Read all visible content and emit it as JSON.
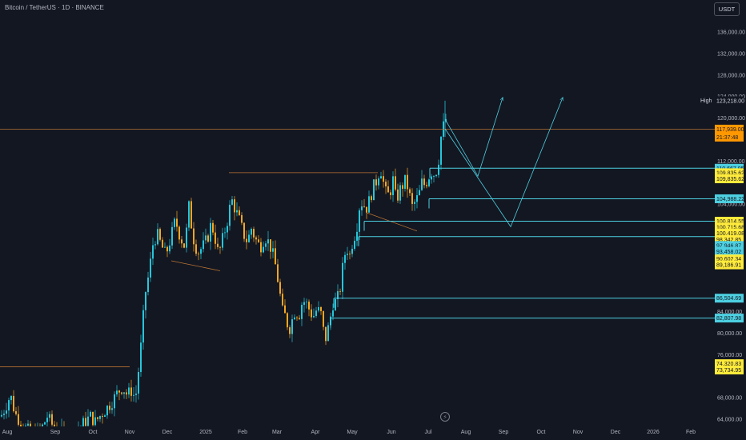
{
  "header": {
    "title": "Bitcoin / TetherUS · 1D · BINANCE",
    "currency_button": "USDT"
  },
  "price_axis": {
    "ticks": [
      "136,000.00",
      "132,000.00",
      "128,000.00",
      "124,000.00",
      "120,000.00",
      "112,000.00",
      "104,000.00",
      "84,000.00",
      "80,000.00",
      "76,000.00",
      "68,000.00",
      "64,000.00"
    ],
    "high_label": "High",
    "labels": [
      {
        "text": "123,218.00",
        "kind": "high",
        "price": 123218
      },
      {
        "text": "117,939.00",
        "kind": "current",
        "price": 117939
      },
      {
        "text": "21:37:48",
        "kind": "countdown",
        "price": 117939
      },
      {
        "text": "110,667.95",
        "kind": "cyan",
        "price": 110667.95
      },
      {
        "text": "109,835.62",
        "kind": "yellow",
        "price": 109835.62
      },
      {
        "text": "109,835.62",
        "kind": "yellow",
        "price": 108700
      },
      {
        "text": "104,988.22",
        "kind": "cyan",
        "price": 104988.22
      },
      {
        "text": "100,814.55",
        "kind": "yellow",
        "price": 100814.55
      },
      {
        "text": "100,715.68",
        "kind": "yellow",
        "price": 99700
      },
      {
        "text": "100,419.08",
        "kind": "yellow",
        "price": 98600
      },
      {
        "text": "98,342.85",
        "kind": "yellow",
        "price": 97400
      },
      {
        "text": "97,946.87",
        "kind": "cyan",
        "price": 96300
      },
      {
        "text": "93,458.02",
        "kind": "cyan",
        "price": 95200
      },
      {
        "text": "90,602.34",
        "kind": "yellow",
        "price": 93800
      },
      {
        "text": "89,186.91",
        "kind": "yellow",
        "price": 92700
      },
      {
        "text": "86,504.69",
        "kind": "cyan",
        "price": 86504.69
      },
      {
        "text": "82,807.98",
        "kind": "cyan",
        "price": 82807.98
      },
      {
        "text": "74,320.83",
        "kind": "yellow",
        "price": 74320.83
      },
      {
        "text": "73,734.95",
        "kind": "yellow",
        "price": 73150
      }
    ]
  },
  "time_axis": [
    "Aug",
    "Sep",
    "Oct",
    "Nov",
    "Dec",
    "2025",
    "Feb",
    "Mar",
    "Apr",
    "May",
    "Jun",
    "Jul",
    "Aug",
    "Sep",
    "Oct",
    "Nov",
    "Dec",
    "2026",
    "Feb"
  ],
  "colors": {
    "up": "#26c6da",
    "down": "#f5a623",
    "cyan_line": "#4dd0e1",
    "yellow_label": "#ffeb3b",
    "orange_line": "#b87333",
    "current": "#ff9800"
  },
  "chart_data": {
    "type": "candlestick",
    "title": "Bitcoin / TetherUS · 1D · BINANCE",
    "ylim": [
      63000,
      139000
    ],
    "y_ticks": [
      64000,
      68000,
      76000,
      80000,
      84000,
      104000,
      112000,
      120000,
      124000,
      128000,
      132000,
      136000
    ],
    "x_labels": [
      "Aug",
      "Sep",
      "Oct",
      "Nov",
      "Dec",
      "2025",
      "Feb",
      "Mar",
      "Apr",
      "May",
      "Jun",
      "Jul",
      "Aug",
      "Sep",
      "Oct",
      "Nov",
      "Dec",
      "2026",
      "Feb"
    ],
    "current_price": 117939,
    "all_time_high": 123218,
    "close_path": [
      [
        0,
        64500
      ],
      [
        5,
        66000
      ],
      [
        12,
        68500
      ],
      [
        18,
        65000
      ],
      [
        25,
        63500
      ],
      [
        30,
        62500
      ],
      [
        40,
        61000
      ],
      [
        50,
        62000
      ],
      [
        58,
        64500
      ],
      [
        66,
        62500
      ],
      [
        75,
        61500
      ],
      [
        85,
        60500
      ],
      [
        95,
        62000
      ],
      [
        105,
        63500
      ],
      [
        112,
        64500
      ],
      [
        118,
        63500
      ],
      [
        125,
        64800
      ],
      [
        132,
        66000
      ],
      [
        140,
        67500
      ],
      [
        146,
        69000
      ],
      [
        152,
        70000
      ],
      [
        158,
        68500
      ],
      [
        164,
        69500
      ],
      [
        168,
        67500
      ],
      [
        172,
        73000
      ],
      [
        176,
        79000
      ],
      [
        180,
        87000
      ],
      [
        185,
        91000
      ],
      [
        190,
        96500
      ],
      [
        195,
        98500
      ],
      [
        200,
        96500
      ],
      [
        206,
        94500
      ],
      [
        212,
        97500
      ],
      [
        218,
        101000
      ],
      [
        224,
        98000
      ],
      [
        230,
        96000
      ],
      [
        235,
        103500
      ],
      [
        240,
        98000
      ],
      [
        246,
        95000
      ],
      [
        252,
        96000
      ],
      [
        258,
        97500
      ],
      [
        263,
        100500
      ],
      [
        268,
        97500
      ],
      [
        272,
        94500
      ],
      [
        278,
        98000
      ],
      [
        284,
        101500
      ],
      [
        288,
        105000
      ],
      [
        293,
        103000
      ],
      [
        298,
        101000
      ],
      [
        303,
        98500
      ],
      [
        308,
        97000
      ],
      [
        313,
        99500
      ],
      [
        318,
        97500
      ],
      [
        324,
        96000
      ],
      [
        330,
        98000
      ],
      [
        336,
        96500
      ],
      [
        340,
        94500
      ],
      [
        344,
        92000
      ],
      [
        348,
        88000
      ],
      [
        352,
        84000
      ],
      [
        356,
        83000
      ],
      [
        360,
        80500
      ],
      [
        364,
        82500
      ],
      [
        368,
        84500
      ],
      [
        372,
        83000
      ],
      [
        376,
        85500
      ],
      [
        380,
        86000
      ],
      [
        385,
        84500
      ],
      [
        390,
        83000
      ],
      [
        395,
        84500
      ],
      [
        400,
        83500
      ],
      [
        405,
        78500
      ],
      [
        410,
        81500
      ],
      [
        415,
        85500
      ],
      [
        420,
        86000
      ],
      [
        425,
        89000
      ],
      [
        428,
        93500
      ],
      [
        432,
        96000
      ],
      [
        436,
        94500
      ],
      [
        440,
        97500
      ],
      [
        444,
        99000
      ],
      [
        448,
        103500
      ],
      [
        452,
        104500
      ],
      [
        456,
        103000
      ],
      [
        460,
        104500
      ],
      [
        465,
        107000
      ],
      [
        470,
        108500
      ],
      [
        474,
        111000
      ],
      [
        478,
        108000
      ],
      [
        482,
        105500
      ],
      [
        486,
        106000
      ],
      [
        490,
        108500
      ],
      [
        494,
        104500
      ],
      [
        498,
        106500
      ],
      [
        502,
        107500
      ],
      [
        506,
        108500
      ],
      [
        510,
        106000
      ],
      [
        514,
        103500
      ],
      [
        518,
        104500
      ],
      [
        522,
        105500
      ],
      [
        526,
        108000
      ],
      [
        530,
        107500
      ],
      [
        534,
        109000
      ],
      [
        538,
        110000
      ],
      [
        542,
        109500
      ],
      [
        546,
        111000
      ],
      [
        550,
        116500
      ],
      [
        553,
        118500
      ],
      [
        556,
        119800
      ],
      [
        559,
        117939
      ]
    ],
    "horizontal_levels": [
      {
        "price": 110667.95,
        "x_start": 537,
        "color": "cyan"
      },
      {
        "price": 104988.22,
        "x_start": 536,
        "color": "cyan"
      },
      {
        "price": 100814.55,
        "x_start": 455,
        "color": "cyan"
      },
      {
        "price": 97946.87,
        "x_start": 448,
        "color": "cyan"
      },
      {
        "price": 86504.69,
        "x_start": 417,
        "color": "cyan"
      },
      {
        "price": 82807.98,
        "x_start": 413,
        "color": "cyan"
      },
      {
        "price": 117939,
        "x_start": 0,
        "color": "orange"
      }
    ],
    "projections": [
      {
        "points": [
          [
            556,
            119800
          ],
          [
            597,
            109200
          ],
          [
            628,
            123800
          ]
        ]
      },
      {
        "points": [
          [
            556,
            118000
          ],
          [
            638,
            99800
          ],
          [
            703,
            123800
          ]
        ]
      }
    ]
  }
}
